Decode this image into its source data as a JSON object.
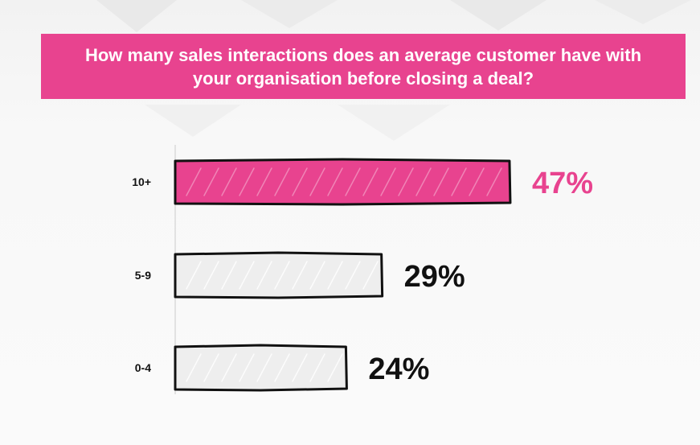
{
  "title": "How many sales interactions does an average customer have with your organisation before closing a deal?",
  "colors": {
    "banner": "#e8438f",
    "highlight_bar": "#e8438f",
    "highlight_label": "#e8438f",
    "default_bar": "#eeeeee",
    "default_label": "#111111",
    "outline": "#111111"
  },
  "chart_data": {
    "type": "bar",
    "orientation": "horizontal",
    "title": "How many sales interactions does an average customer have with your organisation before closing a deal?",
    "categories": [
      "10+",
      "5-9",
      "0-4"
    ],
    "values": [
      47,
      29,
      24
    ],
    "value_labels": [
      "47%",
      "29%",
      "24%"
    ],
    "highlight": "10+",
    "unit": "%",
    "xlabel": "",
    "ylabel": "",
    "grid": false,
    "legend": "none"
  }
}
